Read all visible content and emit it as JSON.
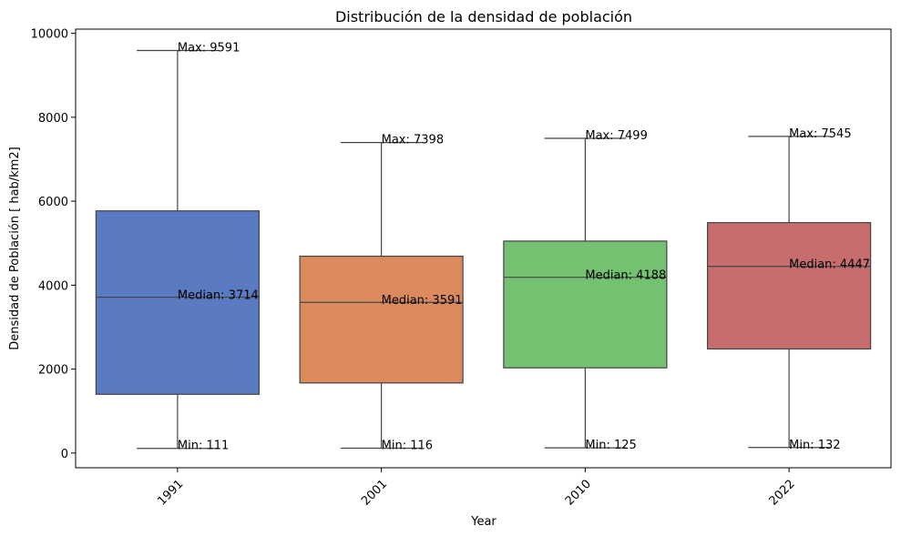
{
  "chart_data": {
    "type": "box",
    "title": "Distribución de la densidad de población",
    "xlabel": "Year",
    "ylabel": "Densidad de Población [ hab/km2]",
    "ylim": [
      -350,
      10100
    ],
    "yticks": [
      0,
      2000,
      4000,
      6000,
      8000,
      10000
    ],
    "grid": false,
    "categories": [
      "1991",
      "2001",
      "2010",
      "2022"
    ],
    "boxes": [
      {
        "category": "1991",
        "min": 111,
        "q1": 1400,
        "median": 3714,
        "q3": 5770,
        "max": 9591,
        "color": "#5a7bc1"
      },
      {
        "category": "2001",
        "min": 116,
        "q1": 1670,
        "median": 3591,
        "q3": 4690,
        "max": 7398,
        "color": "#db8a5e"
      },
      {
        "category": "2010",
        "min": 125,
        "q1": 2030,
        "median": 4188,
        "q3": 5050,
        "max": 7499,
        "color": "#74c172"
      },
      {
        "category": "2022",
        "min": 132,
        "q1": 2480,
        "median": 4447,
        "q3": 5490,
        "max": 7545,
        "color": "#c76d6d"
      }
    ],
    "annotations": [
      {
        "category": "1991",
        "max_label": "Max: 9591",
        "median_label": "Median: 3714",
        "min_label": "Min: 111"
      },
      {
        "category": "2001",
        "max_label": "Max: 7398",
        "median_label": "Median: 3591",
        "min_label": "Min: 116"
      },
      {
        "category": "2010",
        "max_label": "Max: 7499",
        "median_label": "Median: 4188",
        "min_label": "Min: 125"
      },
      {
        "category": "2022",
        "max_label": "Max: 7545",
        "median_label": "Median: 4447",
        "min_label": "Min: 132"
      }
    ]
  }
}
